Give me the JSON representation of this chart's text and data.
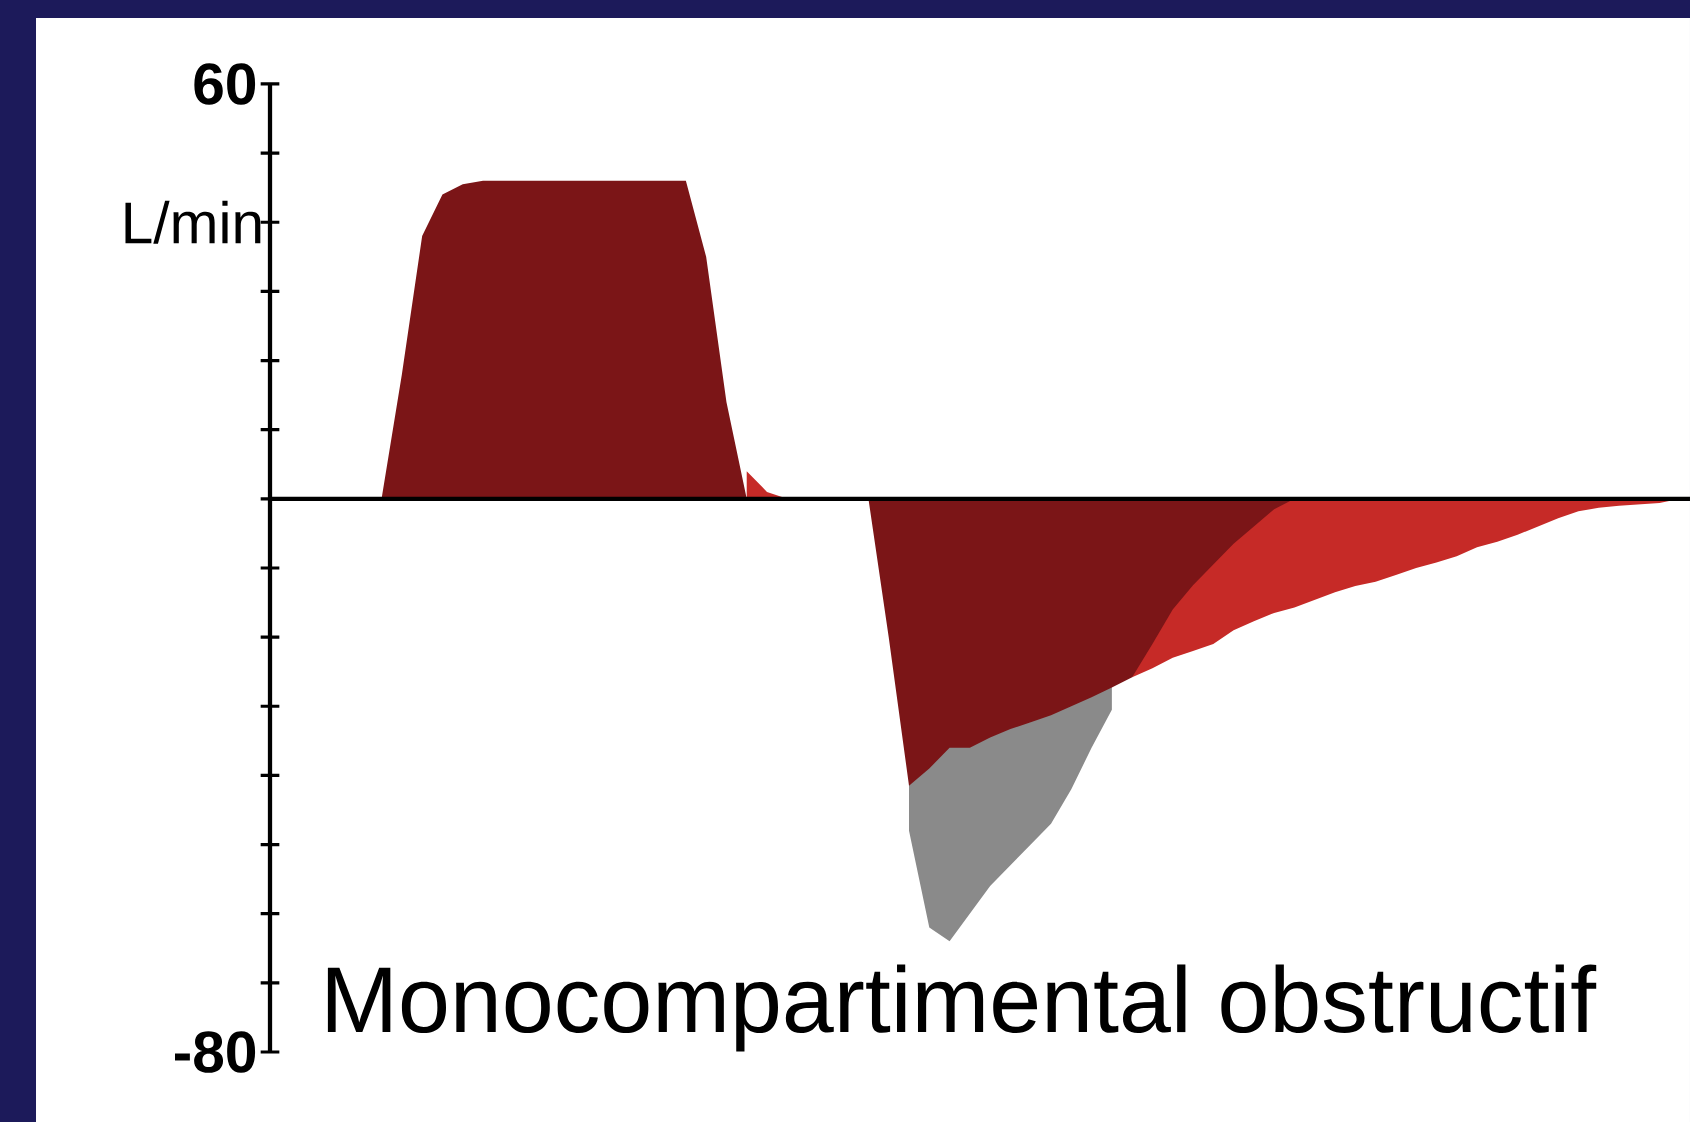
{
  "chart_data": {
    "type": "area",
    "title": "Monocompartimental obstructif",
    "ylabel": "L/min",
    "categories": [
      null,
      null,
      null,
      null,
      null,
      null,
      null,
      null,
      null,
      null,
      null,
      null,
      null,
      null,
      null,
      null,
      null,
      null,
      null,
      null,
      null,
      null,
      null,
      null,
      null,
      null,
      null,
      null,
      null,
      null,
      null,
      null,
      null,
      null,
      null,
      null,
      null,
      null,
      null,
      null,
      null,
      null,
      null,
      null,
      null,
      null,
      null,
      null,
      null,
      null,
      null,
      null,
      null,
      null,
      null,
      null,
      null,
      null,
      null,
      null,
      null,
      null,
      null,
      null,
      null,
      null,
      null,
      null,
      null,
      null
    ],
    "series": [
      {
        "color": "#8a8a8a",
        "values": [
          null,
          null,
          null,
          null,
          null,
          null,
          null,
          null,
          null,
          null,
          null,
          null,
          null,
          null,
          null,
          null,
          null,
          null,
          null,
          null,
          null,
          null,
          null,
          null,
          null,
          null,
          null,
          null,
          null,
          null,
          null,
          -48,
          -62,
          -64,
          -60,
          -56,
          -53,
          -50,
          -47,
          -42,
          -36,
          -30.5,
          null,
          null,
          null,
          null,
          null,
          null,
          null,
          null,
          null,
          null,
          null,
          null,
          null,
          null,
          null,
          null,
          null,
          null,
          null,
          null,
          null,
          null,
          null,
          null,
          null,
          null,
          null,
          null
        ]
      },
      {
        "color": "#c62a27",
        "values": [
          null,
          null,
          null,
          null,
          null,
          null,
          null,
          null,
          null,
          null,
          null,
          null,
          null,
          null,
          null,
          null,
          null,
          null,
          null,
          null,
          null,
          null,
          null,
          4,
          1,
          0,
          null,
          null,
          null,
          null,
          null,
          null,
          null,
          null,
          null,
          null,
          null,
          null,
          null,
          null,
          null,
          null,
          -25.8,
          -24.5,
          -23,
          -22,
          -21,
          -19,
          -17.7,
          -16.5,
          -15.7,
          -14.6,
          -13.5,
          -12.6,
          -12,
          -11,
          -10,
          -9.2,
          -8.3,
          -7,
          -6.2,
          -5.2,
          -4,
          -2.8,
          -1.8,
          -1.3,
          -1,
          -0.8,
          -0.6,
          0
        ]
      },
      {
        "color": "#7b1517",
        "values": [
          null,
          null,
          null,
          null,
          null,
          0,
          18,
          38,
          44,
          45.5,
          46,
          46,
          46,
          46,
          46,
          46,
          46,
          46,
          46,
          46,
          46,
          35,
          14,
          0,
          null,
          null,
          null,
          null,
          null,
          0,
          -20,
          -41.5,
          -39,
          -36,
          -36,
          -34.5,
          -33.3,
          -32.3,
          -31.3,
          -30,
          -28.7,
          -27.3,
          -25.8,
          -21,
          -16,
          -12.5,
          -9.5,
          -6.5,
          -4,
          -1.5,
          0,
          null,
          null,
          null,
          null,
          null,
          null,
          null,
          null,
          null,
          null,
          null,
          null,
          null,
          null,
          null,
          null,
          null,
          null,
          null
        ]
      }
    ],
    "ylim": [
      -80,
      60
    ],
    "yticks": [
      {
        "value": -80,
        "label": "-80"
      },
      {
        "value": -70,
        "label": null
      },
      {
        "value": -60,
        "label": null
      },
      {
        "value": -50,
        "label": null
      },
      {
        "value": -40,
        "label": null
      },
      {
        "value": -30,
        "label": null
      },
      {
        "value": -20,
        "label": null
      },
      {
        "value": -10,
        "label": null
      },
      {
        "value": 0,
        "label": null
      },
      {
        "value": 10,
        "label": null
      },
      {
        "value": 20,
        "label": null
      },
      {
        "value": 30,
        "label": null
      },
      {
        "value": 40,
        "label": null
      },
      {
        "value": 50,
        "label": null
      },
      {
        "value": 60,
        "label": "60"
      }
    ]
  }
}
